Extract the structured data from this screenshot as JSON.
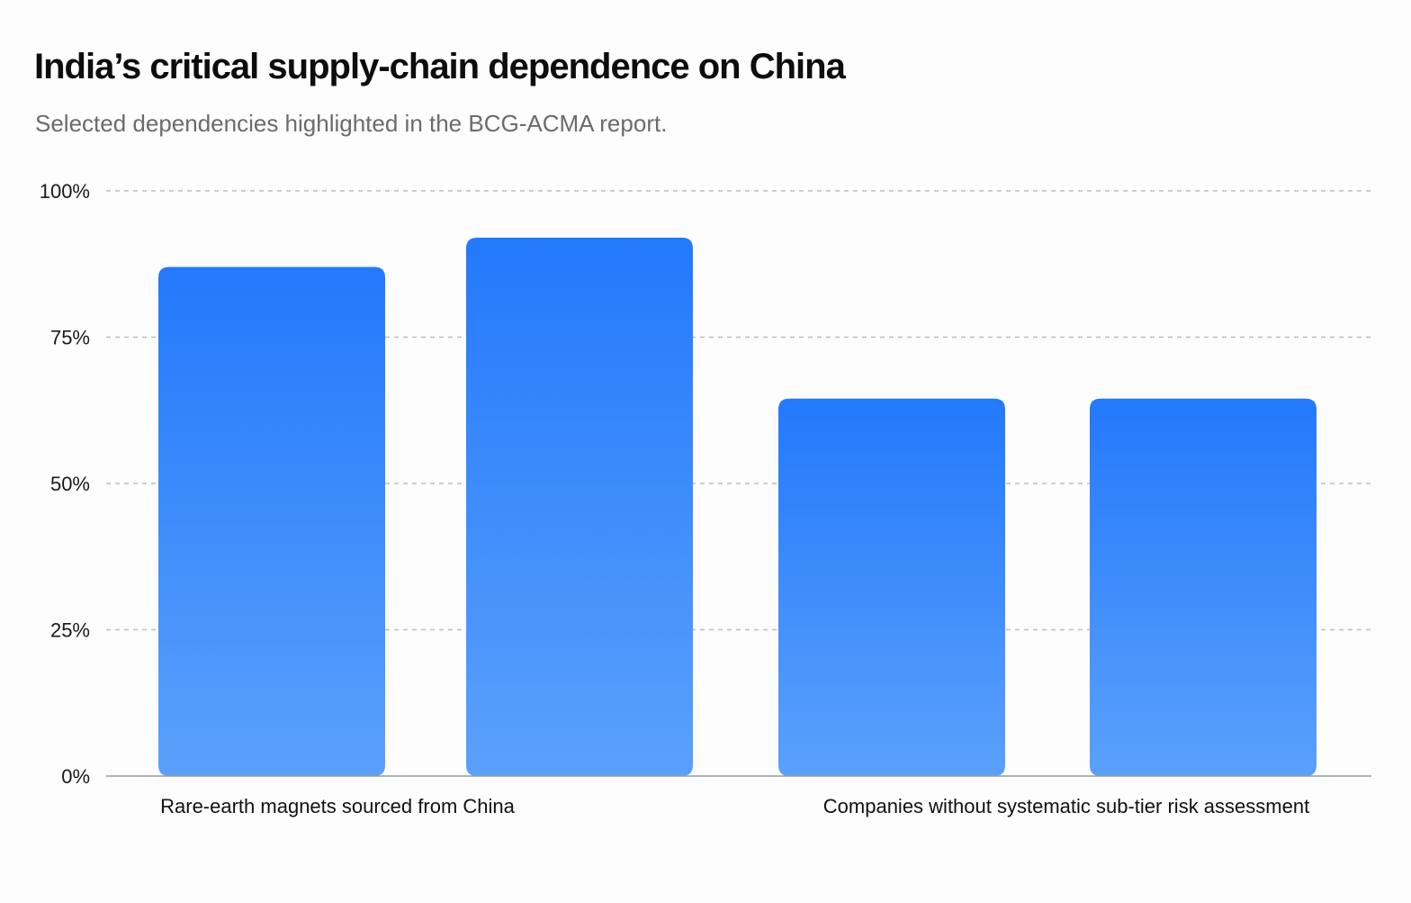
{
  "title": "India’s critical supply-chain dependence on China",
  "subtitle": "Selected dependencies highlighted in the BCG-ACMA report.",
  "chart_data": {
    "type": "bar",
    "categories": [
      "Rare-earth magnets sourced from China",
      "",
      "Companies without systematic sub-tier risk assessment",
      ""
    ],
    "values": [
      87,
      92,
      64.5,
      64.5
    ],
    "ylim": [
      0,
      100
    ],
    "yticks": [
      0,
      25,
      50,
      75,
      100
    ],
    "ytick_labels": [
      "0%",
      "25%",
      "50%",
      "75%",
      "100%"
    ],
    "grid": true,
    "bar_color_top": "#2379fb",
    "bar_color_bottom": "#5ba1fb",
    "xlabel": "",
    "ylabel": ""
  }
}
